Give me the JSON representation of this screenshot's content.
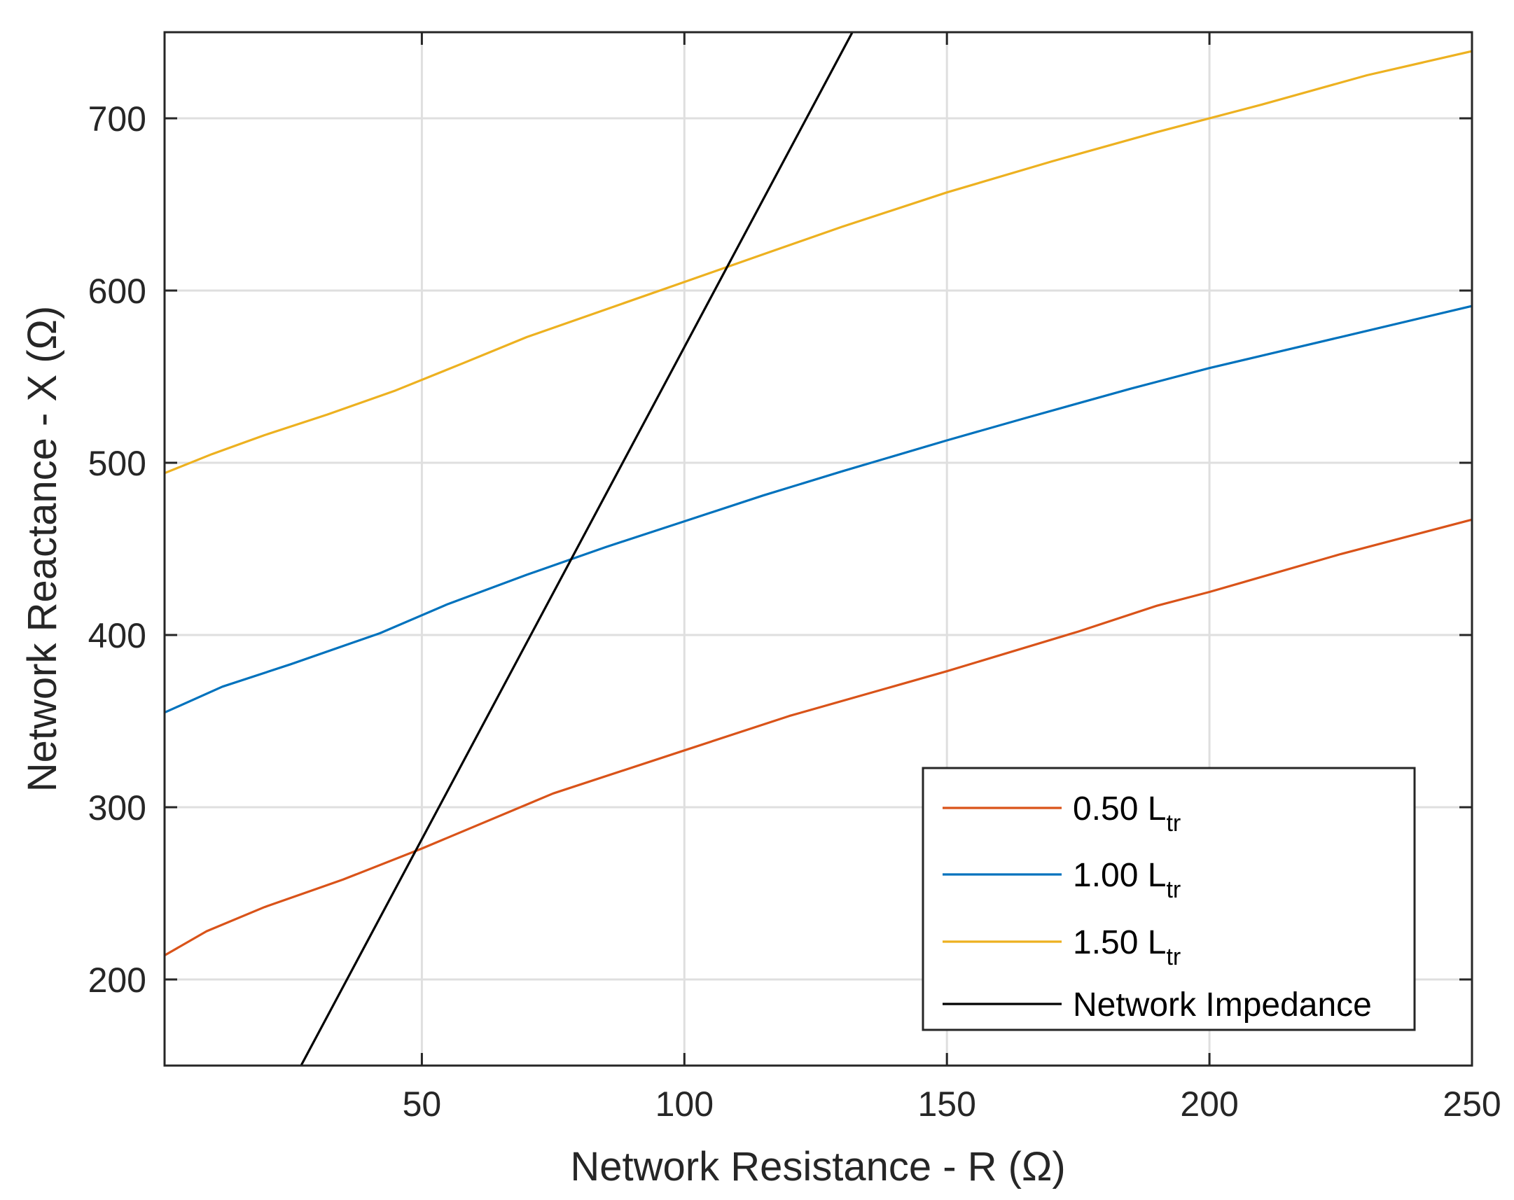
{
  "chart_data": {
    "type": "line",
    "title": "",
    "xlabel": "Network Resistance - R (Ω)",
    "ylabel": "Network Reactance - X (Ω)",
    "xlim": [
      1,
      250
    ],
    "ylim": [
      150,
      750
    ],
    "xticks": [
      50,
      100,
      150,
      200,
      250
    ],
    "yticks": [
      200,
      300,
      400,
      500,
      600,
      700
    ],
    "grid": true,
    "legend_position": "bottom-right",
    "series": [
      {
        "name": "0.50 L_tr",
        "label_main": "0.50 L",
        "label_sub": "tr",
        "color": "#D95319",
        "x": [
          1,
          9,
          20,
          35,
          50,
          75,
          100,
          120,
          150,
          175,
          190,
          200,
          225,
          250
        ],
        "y": [
          214,
          228,
          242,
          258,
          276,
          308,
          333,
          353,
          379,
          402,
          417,
          425,
          447,
          467
        ]
      },
      {
        "name": "1.00 L_tr",
        "label_main": "1.00 L",
        "label_sub": "tr",
        "color": "#0072BD",
        "x": [
          1,
          12,
          25,
          42,
          55,
          70,
          85,
          100,
          115,
          130,
          150,
          165,
          185,
          200,
          225,
          250
        ],
        "y": [
          355,
          370,
          383,
          401,
          418,
          435,
          451,
          466,
          481,
          495,
          513,
          526,
          543,
          555,
          573,
          591
        ]
      },
      {
        "name": "1.50 L_tr",
        "label_main": "1.50 L",
        "label_sub": "tr",
        "color": "#EDB120",
        "x": [
          1,
          10,
          20,
          32,
          45,
          58,
          70,
          85,
          100,
          115,
          130,
          150,
          170,
          190,
          210,
          230,
          250
        ],
        "y": [
          494,
          505,
          516,
          528,
          542,
          558,
          573,
          589,
          605,
          621,
          637,
          657,
          675,
          692,
          708,
          725,
          739
        ]
      },
      {
        "name": "Network Impedance",
        "label_main": "Network Impedance",
        "label_sub": "",
        "color": "#000000",
        "x": [
          27,
          132
        ],
        "y": [
          150,
          750
        ]
      }
    ]
  }
}
